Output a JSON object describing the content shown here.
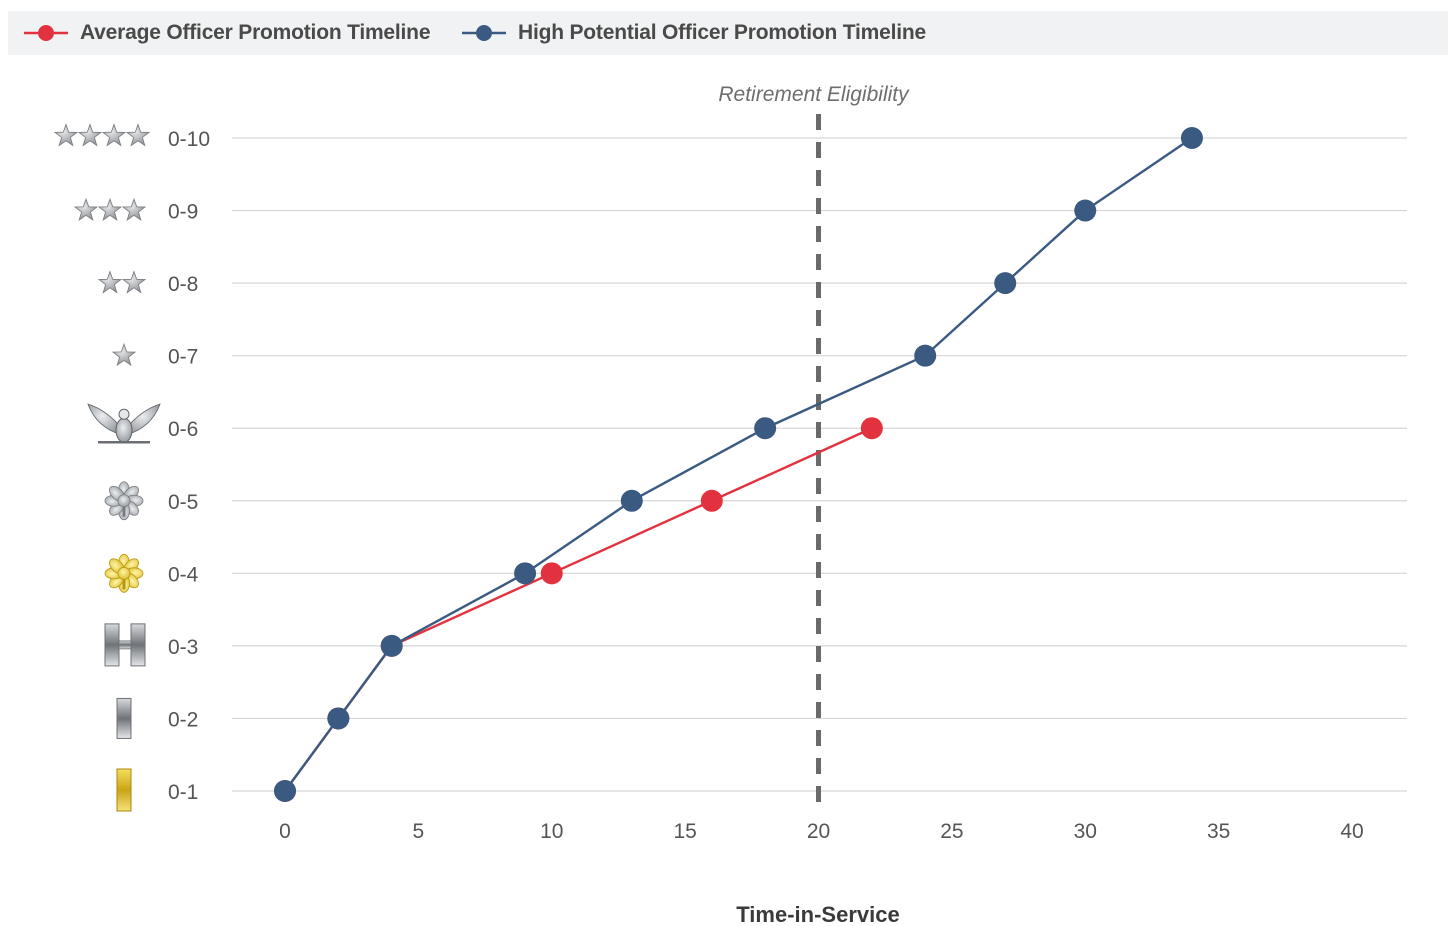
{
  "legend": {
    "average_label": "Average Officer Promotion Timeline",
    "high_label": "High Potential Officer Promotion Timeline"
  },
  "chart_data": {
    "type": "line",
    "title": "",
    "xlabel": "Time-in-Service",
    "ylabel": "",
    "xlim": [
      0,
      42
    ],
    "x_ticks": [
      0,
      5,
      10,
      15,
      20,
      25,
      30,
      35,
      40
    ],
    "y_categories": [
      "0-1",
      "0-2",
      "0-3",
      "0-4",
      "0-5",
      "0-6",
      "0-7",
      "0-8",
      "0-9",
      "0-10"
    ],
    "y_icons": [
      "gold-bar-icon",
      "silver-bar-icon",
      "double-silver-bar-icon",
      "gold-oak-leaf-icon",
      "silver-oak-leaf-icon",
      "eagle-icon",
      "one-star-icon",
      "two-star-icon",
      "three-star-icon",
      "four-star-icon"
    ],
    "grid": true,
    "legend_position": "top-left",
    "series": [
      {
        "name": "Average Officer Promotion Timeline",
        "color": "#e3323f",
        "points": [
          [
            0,
            1
          ],
          [
            2,
            2
          ],
          [
            4,
            3
          ],
          [
            10,
            4
          ],
          [
            16,
            5
          ],
          [
            22,
            6
          ]
        ]
      },
      {
        "name": "High Potential Officer Promotion Timeline",
        "color": "#3b5a82",
        "points": [
          [
            0,
            1
          ],
          [
            2,
            2
          ],
          [
            4,
            3
          ],
          [
            9,
            4
          ],
          [
            13,
            5
          ],
          [
            18,
            6
          ],
          [
            24,
            7
          ],
          [
            27,
            8
          ],
          [
            30,
            9
          ],
          [
            34,
            10
          ]
        ]
      }
    ],
    "annotations": [
      {
        "x": 20,
        "label": "Retirement Eligibility",
        "style": "dashed-vertical-line"
      }
    ]
  }
}
